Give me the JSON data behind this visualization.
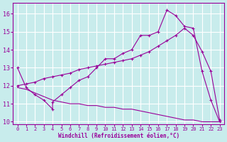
{
  "xlabel": "Windchill (Refroidissement éolien,°C)",
  "bg_color": "#c8ecec",
  "line_color": "#990099",
  "grid_color": "#ffffff",
  "xlim": [
    -0.5,
    23.5
  ],
  "ylim": [
    9.85,
    16.6
  ],
  "yticks": [
    10,
    11,
    12,
    13,
    14,
    15,
    16
  ],
  "xticks": [
    0,
    1,
    2,
    3,
    4,
    5,
    6,
    7,
    8,
    9,
    10,
    11,
    12,
    13,
    14,
    15,
    16,
    17,
    18,
    19,
    20,
    21,
    22,
    23
  ],
  "line1_x": [
    0,
    1,
    2,
    3,
    4,
    4,
    5,
    6,
    7,
    8,
    9,
    10,
    11,
    12,
    13,
    14,
    15,
    16,
    17,
    18,
    19,
    20,
    21,
    22,
    23
  ],
  "line1_y": [
    13.0,
    11.9,
    11.5,
    11.2,
    10.7,
    11.1,
    11.5,
    11.9,
    12.3,
    12.5,
    13.0,
    13.5,
    13.5,
    13.8,
    14.0,
    14.8,
    14.8,
    15.0,
    16.2,
    15.9,
    15.3,
    15.2,
    12.8,
    11.2,
    10.0
  ],
  "line2_x": [
    0,
    1,
    2,
    3,
    4,
    5,
    6,
    7,
    8,
    9,
    10,
    11,
    12,
    13,
    14,
    15,
    16,
    17,
    18,
    19,
    20,
    21,
    22,
    23
  ],
  "line2_y": [
    12.0,
    12.1,
    12.2,
    12.4,
    12.5,
    12.6,
    12.7,
    12.9,
    13.0,
    13.1,
    13.2,
    13.3,
    13.4,
    13.5,
    13.7,
    13.9,
    14.2,
    14.5,
    14.8,
    15.2,
    14.8,
    13.9,
    12.8,
    10.1
  ],
  "line3_x": [
    0,
    1,
    2,
    3,
    4,
    5,
    6,
    7,
    8,
    9,
    10,
    11,
    12,
    13,
    14,
    15,
    16,
    17,
    18,
    19,
    20,
    21,
    22,
    23
  ],
  "line3_y": [
    11.9,
    11.8,
    11.6,
    11.4,
    11.2,
    11.1,
    11.0,
    11.0,
    10.9,
    10.9,
    10.8,
    10.8,
    10.7,
    10.7,
    10.6,
    10.5,
    10.4,
    10.3,
    10.2,
    10.1,
    10.1,
    10.0,
    10.0,
    10.0
  ]
}
